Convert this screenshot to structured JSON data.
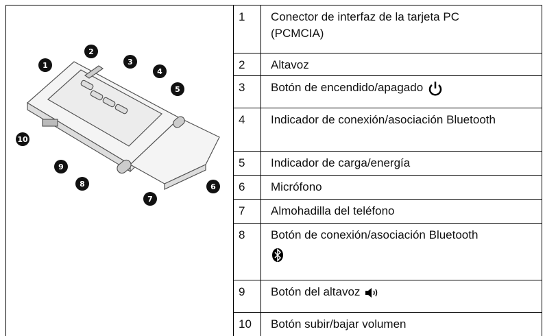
{
  "figure": {
    "callouts": [
      "1",
      "2",
      "3",
      "4",
      "5",
      "6",
      "7",
      "8",
      "9",
      "10"
    ]
  },
  "table": {
    "rows": [
      [
        "1",
        "Conector de interfaz de la tarjeta PC (PCMCIA)"
      ],
      [
        "2",
        "Altavoz"
      ],
      [
        "3",
        "Botón de encendido/apagado"
      ],
      [
        "4",
        "Indicador de conexión/asociación Bluetooth"
      ],
      [
        "5",
        "Indicador de carga/energía"
      ],
      [
        "6",
        "Micrófono"
      ],
      [
        "7",
        "Almohadilla del teléfono"
      ],
      [
        "8",
        "Botón de conexión/asociación Bluetooth"
      ],
      [
        "9",
        "Botón del altavoz"
      ],
      [
        "10",
        "Botón subir/bajar volumen"
      ]
    ]
  }
}
